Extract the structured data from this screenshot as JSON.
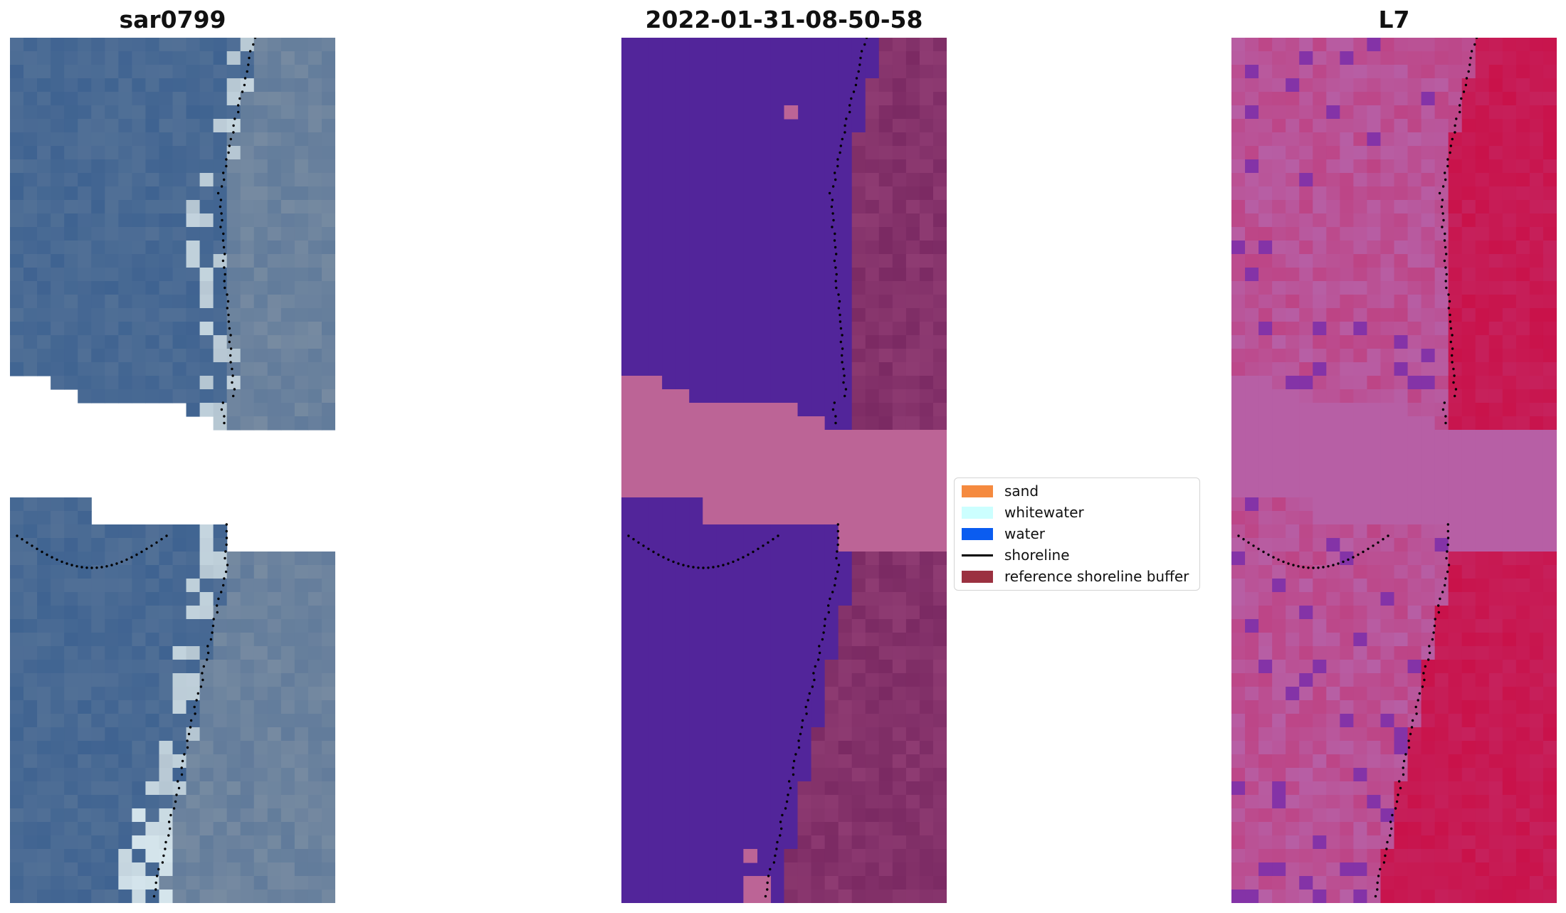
{
  "titles": {
    "panel1": "sar0799",
    "panel2": "2022-01-31-08-50-58",
    "panel3": "L7"
  },
  "legend": {
    "items": [
      {
        "label": "sand",
        "color": "#f58a3f",
        "kind": "patch"
      },
      {
        "label": "whitewater",
        "color": "#ccffff",
        "kind": "patch"
      },
      {
        "label": "water",
        "color": "#0a5cf0",
        "kind": "patch"
      },
      {
        "label": "shoreline",
        "color": "#000000",
        "kind": "line"
      },
      {
        "label": "reference shoreline buffer",
        "color": "#9b3140",
        "kind": "patch"
      }
    ]
  },
  "colors": {
    "rgb_water": "#3f6391",
    "rgb_land": "#7d8fa3",
    "rgb_bright": "#d7e7ee",
    "class_water": "#52259a",
    "class_buffer": "#bc6496",
    "class_land": "#7b2a63",
    "ndwi_low": "#b75fa5",
    "ndwi_high": "#c9124a",
    "ndwi_dark": "#5b0fa8",
    "nodata": "#ffffff",
    "shoreline": "#000000"
  }
}
